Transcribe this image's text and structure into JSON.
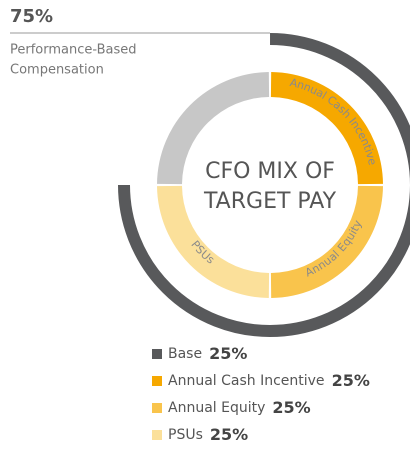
{
  "chart_data": {
    "type": "donut",
    "title": [
      "CFO MIX OF",
      "TARGET PAY"
    ],
    "categories": [
      "Base",
      "Annual Cash Incentive",
      "Annual Equity",
      "PSUs"
    ],
    "values": [
      25,
      25,
      25,
      25
    ],
    "value_labels": [
      "25%",
      "25%",
      "25%",
      "25%"
    ],
    "colors": [
      "#c7c7c7",
      "#f6a800",
      "#f9c44c",
      "#fbe09a"
    ],
    "legend_colors": [
      "#58595b",
      "#f6a800",
      "#f9c44c",
      "#fbe09a"
    ],
    "ring_labeled": [
      false,
      true,
      true,
      true
    ],
    "annotation": {
      "value": 75,
      "value_label": "75%",
      "text": [
        "Performance-Based",
        "Compensation"
      ],
      "color": "#58595b"
    }
  }
}
